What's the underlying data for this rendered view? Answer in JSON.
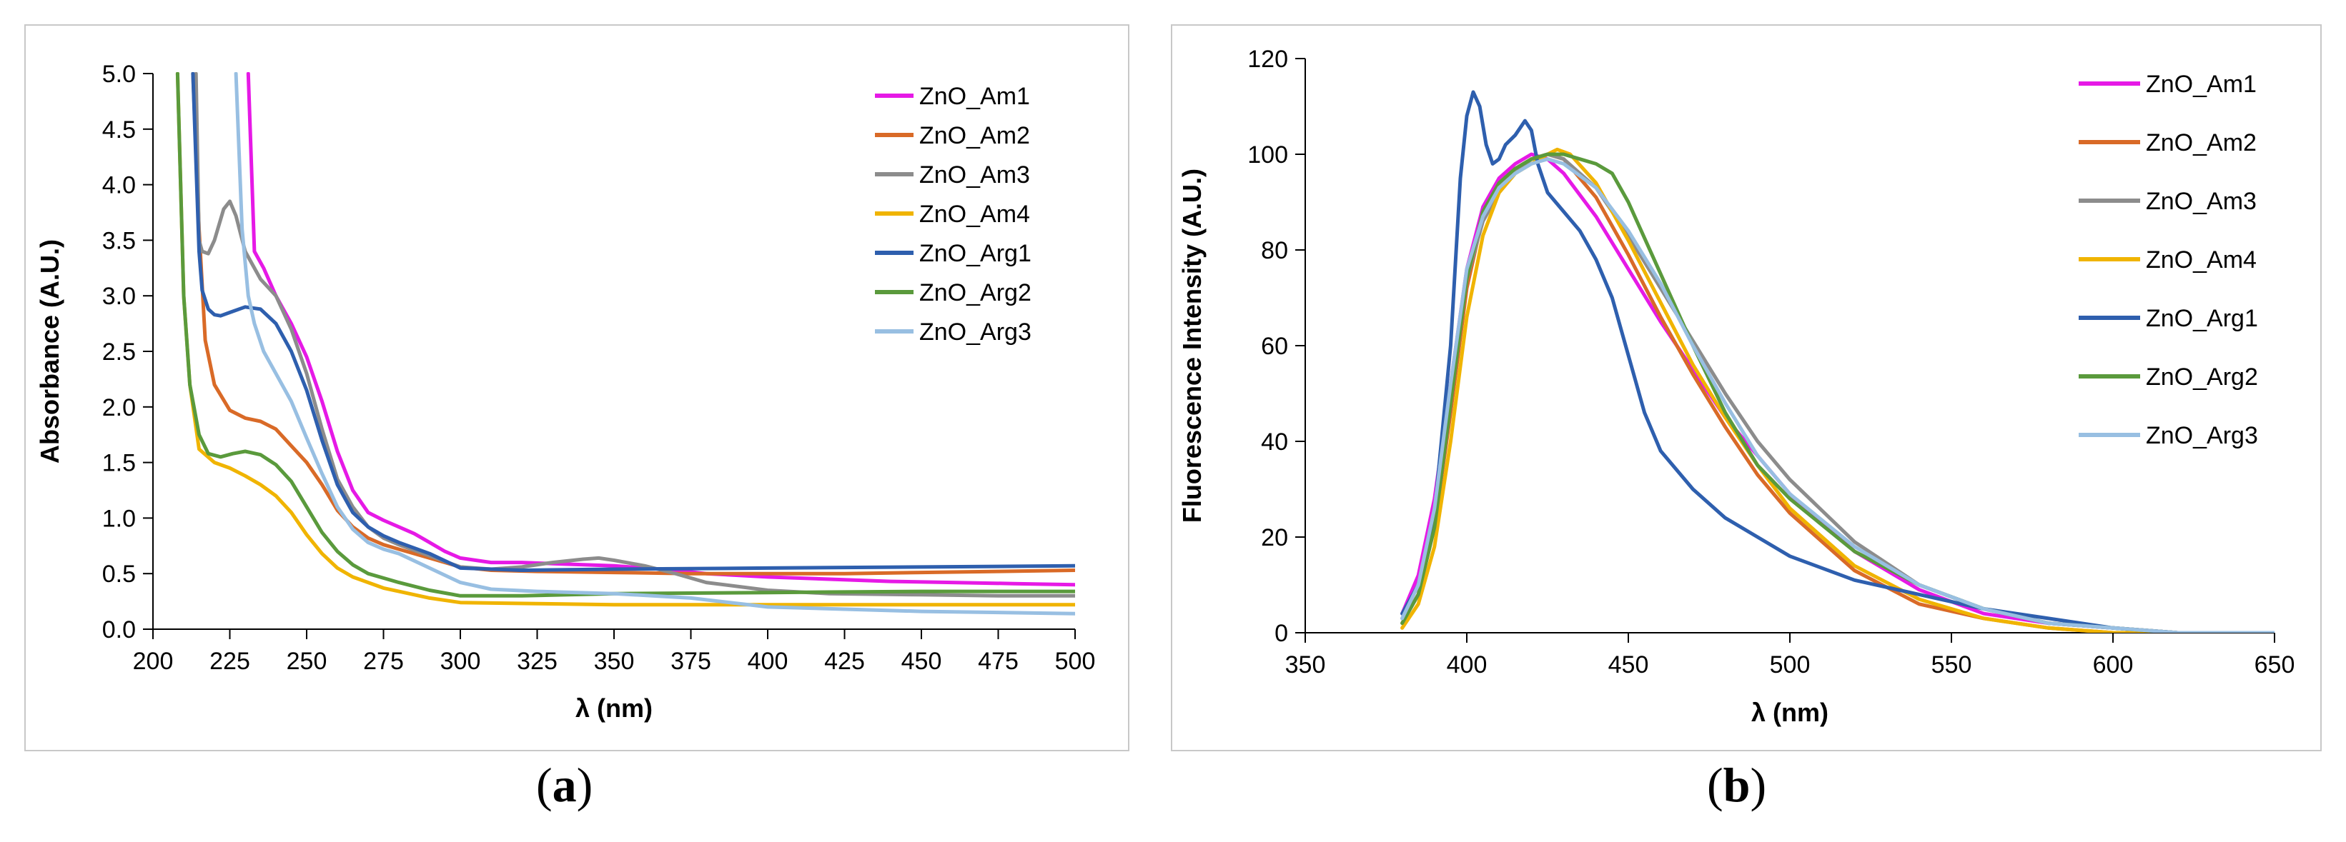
{
  "chart_data": [
    {
      "type": "line",
      "id": "a",
      "caption": {
        "open": "(",
        "letter": "a",
        "close": ")"
      },
      "xlabel": "λ (nm)",
      "ylabel": "Absorbance (A.U.)",
      "xlim": [
        200,
        500
      ],
      "ylim": [
        0,
        5
      ],
      "xticks": [
        200,
        225,
        250,
        275,
        300,
        325,
        350,
        375,
        400,
        425,
        450,
        475,
        500
      ],
      "yticks": [
        "0.0",
        "0.5",
        "1.0",
        "1.5",
        "2.0",
        "2.5",
        "3.0",
        "3.5",
        "4.0",
        "4.5",
        "5.0"
      ],
      "legend_position": "top-right",
      "series": [
        {
          "name": "ZnO_Am1",
          "color": "#e619e6",
          "x": [
            231,
            233,
            236,
            240,
            245,
            250,
            255,
            260,
            265,
            270,
            275,
            280,
            285,
            290,
            295,
            300,
            310,
            320,
            330,
            340,
            350,
            360,
            370,
            380,
            400,
            420,
            440,
            460,
            480,
            500
          ],
          "y": [
            5.0,
            3.4,
            3.25,
            3.0,
            2.75,
            2.45,
            2.05,
            1.6,
            1.25,
            1.05,
            0.98,
            0.92,
            0.86,
            0.78,
            0.7,
            0.64,
            0.6,
            0.6,
            0.59,
            0.58,
            0.57,
            0.55,
            0.53,
            0.5,
            0.47,
            0.45,
            0.43,
            0.42,
            0.41,
            0.4
          ]
        },
        {
          "name": "ZnO_Am2",
          "color": "#d96a27",
          "x": [
            213,
            215,
            217,
            220,
            225,
            230,
            235,
            240,
            245,
            250,
            255,
            260,
            265,
            270,
            275,
            280,
            290,
            300,
            310,
            325,
            350,
            375,
            400,
            425,
            450,
            475,
            500
          ],
          "y": [
            5.0,
            3.6,
            2.6,
            2.2,
            1.97,
            1.9,
            1.87,
            1.8,
            1.65,
            1.5,
            1.3,
            1.07,
            0.92,
            0.82,
            0.76,
            0.72,
            0.64,
            0.56,
            0.53,
            0.52,
            0.51,
            0.5,
            0.5,
            0.5,
            0.51,
            0.52,
            0.53
          ]
        },
        {
          "name": "ZnO_Am3",
          "color": "#8c8c8c",
          "x": [
            214,
            215,
            216,
            218,
            220,
            223,
            225,
            227,
            230,
            235,
            240,
            245,
            250,
            255,
            260,
            265,
            270,
            275,
            280,
            290,
            300,
            310,
            320,
            330,
            340,
            345,
            350,
            360,
            370,
            380,
            400,
            420,
            450,
            475,
            500
          ],
          "y": [
            5.0,
            3.5,
            3.4,
            3.38,
            3.5,
            3.78,
            3.85,
            3.72,
            3.4,
            3.15,
            3.0,
            2.7,
            2.3,
            1.8,
            1.35,
            1.1,
            0.92,
            0.82,
            0.76,
            0.66,
            0.56,
            0.54,
            0.56,
            0.6,
            0.63,
            0.64,
            0.62,
            0.57,
            0.5,
            0.42,
            0.35,
            0.32,
            0.31,
            0.3,
            0.3
          ]
        },
        {
          "name": "ZnO_Am4",
          "color": "#f0b400",
          "x": [
            208,
            209,
            210,
            212,
            215,
            220,
            225,
            230,
            235,
            240,
            245,
            250,
            255,
            260,
            265,
            270,
            275,
            280,
            290,
            300,
            325,
            350,
            375,
            400,
            450,
            500
          ],
          "y": [
            5.0,
            4.0,
            3.0,
            2.2,
            1.62,
            1.5,
            1.45,
            1.38,
            1.3,
            1.2,
            1.05,
            0.85,
            0.68,
            0.55,
            0.47,
            0.42,
            0.37,
            0.34,
            0.28,
            0.24,
            0.23,
            0.22,
            0.22,
            0.22,
            0.22,
            0.22
          ]
        },
        {
          "name": "ZnO_Arg1",
          "color": "#2e5fae",
          "x": [
            213,
            215,
            216,
            218,
            220,
            222,
            225,
            230,
            235,
            240,
            245,
            250,
            255,
            260,
            265,
            270,
            275,
            280,
            290,
            300,
            320,
            350,
            400,
            450,
            500
          ],
          "y": [
            5.0,
            3.4,
            3.05,
            2.88,
            2.83,
            2.82,
            2.85,
            2.9,
            2.88,
            2.75,
            2.5,
            2.15,
            1.7,
            1.3,
            1.05,
            0.92,
            0.84,
            0.78,
            0.68,
            0.55,
            0.53,
            0.54,
            0.55,
            0.56,
            0.57
          ]
        },
        {
          "name": "ZnO_Arg2",
          "color": "#5a9a3c",
          "x": [
            208,
            209,
            210,
            212,
            215,
            218,
            222,
            226,
            230,
            235,
            240,
            245,
            250,
            255,
            260,
            265,
            270,
            275,
            280,
            290,
            300,
            320,
            350,
            400,
            450,
            500
          ],
          "y": [
            5.0,
            4.0,
            3.0,
            2.2,
            1.75,
            1.58,
            1.55,
            1.58,
            1.6,
            1.57,
            1.48,
            1.33,
            1.1,
            0.87,
            0.7,
            0.58,
            0.5,
            0.46,
            0.42,
            0.35,
            0.3,
            0.3,
            0.32,
            0.33,
            0.34,
            0.34
          ]
        },
        {
          "name": "ZnO_Arg3",
          "color": "#98bfe2",
          "x": [
            227,
            229,
            231,
            233,
            236,
            240,
            245,
            250,
            255,
            260,
            265,
            270,
            275,
            280,
            290,
            300,
            310,
            325,
            350,
            375,
            400,
            450,
            500
          ],
          "y": [
            5.0,
            3.6,
            3.0,
            2.75,
            2.5,
            2.3,
            2.05,
            1.72,
            1.4,
            1.1,
            0.9,
            0.78,
            0.72,
            0.68,
            0.55,
            0.42,
            0.36,
            0.34,
            0.32,
            0.28,
            0.2,
            0.16,
            0.14
          ]
        }
      ]
    },
    {
      "type": "line",
      "id": "b",
      "caption": {
        "open": "(",
        "letter": "b",
        "close": ")"
      },
      "xlabel": "λ (nm)",
      "ylabel": "Fluorescence Intensity (A.U.)",
      "xlim": [
        350,
        650
      ],
      "ylim": [
        0,
        120
      ],
      "xticks": [
        350,
        400,
        450,
        500,
        550,
        600,
        650
      ],
      "yticks": [
        0,
        20,
        40,
        60,
        80,
        100,
        120
      ],
      "legend_position": "top-right",
      "series": [
        {
          "name": "ZnO_Am1",
          "color": "#e619e6",
          "x": [
            380,
            385,
            390,
            395,
            400,
            405,
            410,
            415,
            420,
            425,
            430,
            440,
            450,
            460,
            470,
            480,
            490,
            500,
            520,
            540,
            560,
            580,
            600,
            620,
            650
          ],
          "y": [
            4,
            12,
            28,
            52,
            76,
            89,
            95,
            98,
            100,
            99,
            96,
            87,
            76,
            65,
            55,
            45,
            37,
            29,
            17,
            9,
            4,
            2,
            1,
            0,
            0
          ]
        },
        {
          "name": "ZnO_Am2",
          "color": "#d96a27",
          "x": [
            380,
            385,
            390,
            395,
            400,
            405,
            410,
            415,
            420,
            425,
            430,
            440,
            450,
            460,
            470,
            480,
            490,
            500,
            520,
            540,
            560,
            580,
            600,
            620,
            650
          ],
          "y": [
            2,
            8,
            22,
            46,
            72,
            87,
            94,
            97,
            99,
            100,
            99,
            91,
            79,
            66,
            54,
            43,
            33,
            25,
            13,
            6,
            3,
            1,
            0,
            0,
            0
          ]
        },
        {
          "name": "ZnO_Am3",
          "color": "#8c8c8c",
          "x": [
            380,
            385,
            390,
            395,
            400,
            405,
            410,
            415,
            420,
            425,
            430,
            440,
            450,
            460,
            470,
            480,
            490,
            500,
            520,
            540,
            560,
            580,
            600,
            620,
            650
          ],
          "y": [
            3,
            10,
            25,
            50,
            74,
            86,
            92,
            96,
            99,
            100,
            99,
            93,
            83,
            72,
            61,
            50,
            40,
            32,
            19,
            10,
            5,
            2,
            1,
            0,
            0
          ]
        },
        {
          "name": "ZnO_Am4",
          "color": "#f0b400",
          "x": [
            380,
            385,
            390,
            395,
            400,
            405,
            410,
            415,
            420,
            425,
            428,
            432,
            440,
            450,
            460,
            470,
            480,
            490,
            500,
            520,
            540,
            560,
            580,
            600,
            620,
            650
          ],
          "y": [
            1,
            6,
            18,
            40,
            66,
            83,
            92,
            96,
            98,
            100,
            101,
            100,
            94,
            82,
            69,
            56,
            45,
            35,
            26,
            14,
            7,
            3,
            1,
            0,
            0,
            0
          ]
        },
        {
          "name": "ZnO_Arg1",
          "color": "#2e5fae",
          "x": [
            380,
            385,
            390,
            395,
            398,
            400,
            402,
            404,
            406,
            408,
            410,
            412,
            415,
            418,
            420,
            422,
            425,
            430,
            435,
            440,
            445,
            450,
            455,
            460,
            470,
            480,
            490,
            500,
            520,
            540,
            560,
            580,
            600,
            620,
            650
          ],
          "y": [
            4,
            10,
            25,
            60,
            95,
            108,
            113,
            110,
            102,
            98,
            99,
            102,
            104,
            107,
            105,
            98,
            92,
            88,
            84,
            78,
            70,
            58,
            46,
            38,
            30,
            24,
            20,
            16,
            11,
            8,
            5,
            3,
            1,
            0,
            0
          ]
        },
        {
          "name": "ZnO_Arg2",
          "color": "#5a9a3c",
          "x": [
            380,
            385,
            390,
            395,
            400,
            405,
            410,
            415,
            420,
            425,
            430,
            435,
            440,
            445,
            450,
            460,
            470,
            480,
            490,
            500,
            520,
            540,
            560,
            580,
            600,
            620,
            650
          ],
          "y": [
            2,
            8,
            22,
            48,
            74,
            88,
            94,
            97,
            99,
            100,
            100,
            99,
            98,
            96,
            90,
            75,
            60,
            46,
            35,
            28,
            17,
            10,
            5,
            2,
            1,
            0,
            0
          ]
        },
        {
          "name": "ZnO_Arg3",
          "color": "#98bfe2",
          "x": [
            380,
            385,
            390,
            395,
            400,
            405,
            410,
            415,
            420,
            425,
            430,
            440,
            450,
            460,
            470,
            480,
            490,
            500,
            520,
            540,
            560,
            580,
            600,
            620,
            650
          ],
          "y": [
            3,
            10,
            26,
            52,
            76,
            87,
            93,
            96,
            98,
            99,
            98,
            93,
            84,
            73,
            60,
            48,
            37,
            29,
            18,
            10,
            5,
            2,
            1,
            0,
            0
          ]
        }
      ]
    }
  ]
}
